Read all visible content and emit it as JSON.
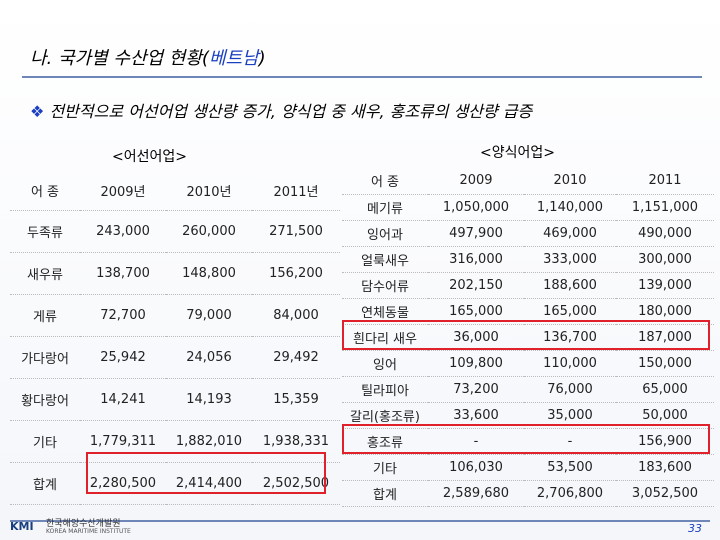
{
  "header": {
    "title_prefix": "나. 국가별 수산업 현황(",
    "title_country": "베트남",
    "title_suffix": ")",
    "subtitle": "전반적으로 어선어업 생산량 증가, 양식업 중 새우, 홍조류의 생산량 급증"
  },
  "left_table": {
    "label": "<어선어업>",
    "header": [
      "어 종",
      "2009년",
      "2010년",
      "2011년"
    ],
    "rows": [
      [
        "두족류",
        "243,000",
        "260,000",
        "271,500"
      ],
      [
        "새우류",
        "138,700",
        "148,800",
        "156,200"
      ],
      [
        "게류",
        "72,700",
        "79,000",
        "84,000"
      ],
      [
        "가다랑어",
        "25,942",
        "24,056",
        "29,492"
      ],
      [
        "황다랑어",
        "14,241",
        "14,193",
        "15,359"
      ],
      [
        "기타",
        "1,779,311",
        "1,882,010",
        "1,938,331"
      ],
      [
        "합계",
        "2,280,500",
        "2,414,400",
        "2,502,500"
      ]
    ]
  },
  "right_table": {
    "label": "<양식어업>",
    "header": [
      "어 종",
      "2009",
      "2010",
      "2011"
    ],
    "rows": [
      [
        "메기류",
        "1,050,000",
        "1,140,000",
        "1,151,000"
      ],
      [
        "잉어과",
        "497,900",
        "469,000",
        "490,000"
      ],
      [
        "얼룩새우",
        "316,000",
        "333,000",
        "300,000"
      ],
      [
        "담수어류",
        "202,150",
        "188,600",
        "139,000"
      ],
      [
        "연체동물",
        "165,000",
        "165,000",
        "180,000"
      ],
      [
        "흰다리 새우",
        "36,000",
        "136,700",
        "187,000"
      ],
      [
        "잉어",
        "109,800",
        "110,000",
        "150,000"
      ],
      [
        "틸라피아",
        "73,200",
        "76,000",
        "65,000"
      ],
      [
        "갈리(홍조류)",
        "33,600",
        "35,000",
        "50,000"
      ],
      [
        "홍조류",
        "-",
        "-",
        "156,900"
      ],
      [
        "기타",
        "106,030",
        "53,500",
        "183,600"
      ],
      [
        "합계",
        "2,589,680",
        "2,706,800",
        "3,052,500"
      ]
    ]
  },
  "footer": {
    "org_name": "한국해양수산개발원",
    "org_name_en": "KOREA MARITIME INSTITUTE",
    "logo": "KMI",
    "page": "33"
  }
}
